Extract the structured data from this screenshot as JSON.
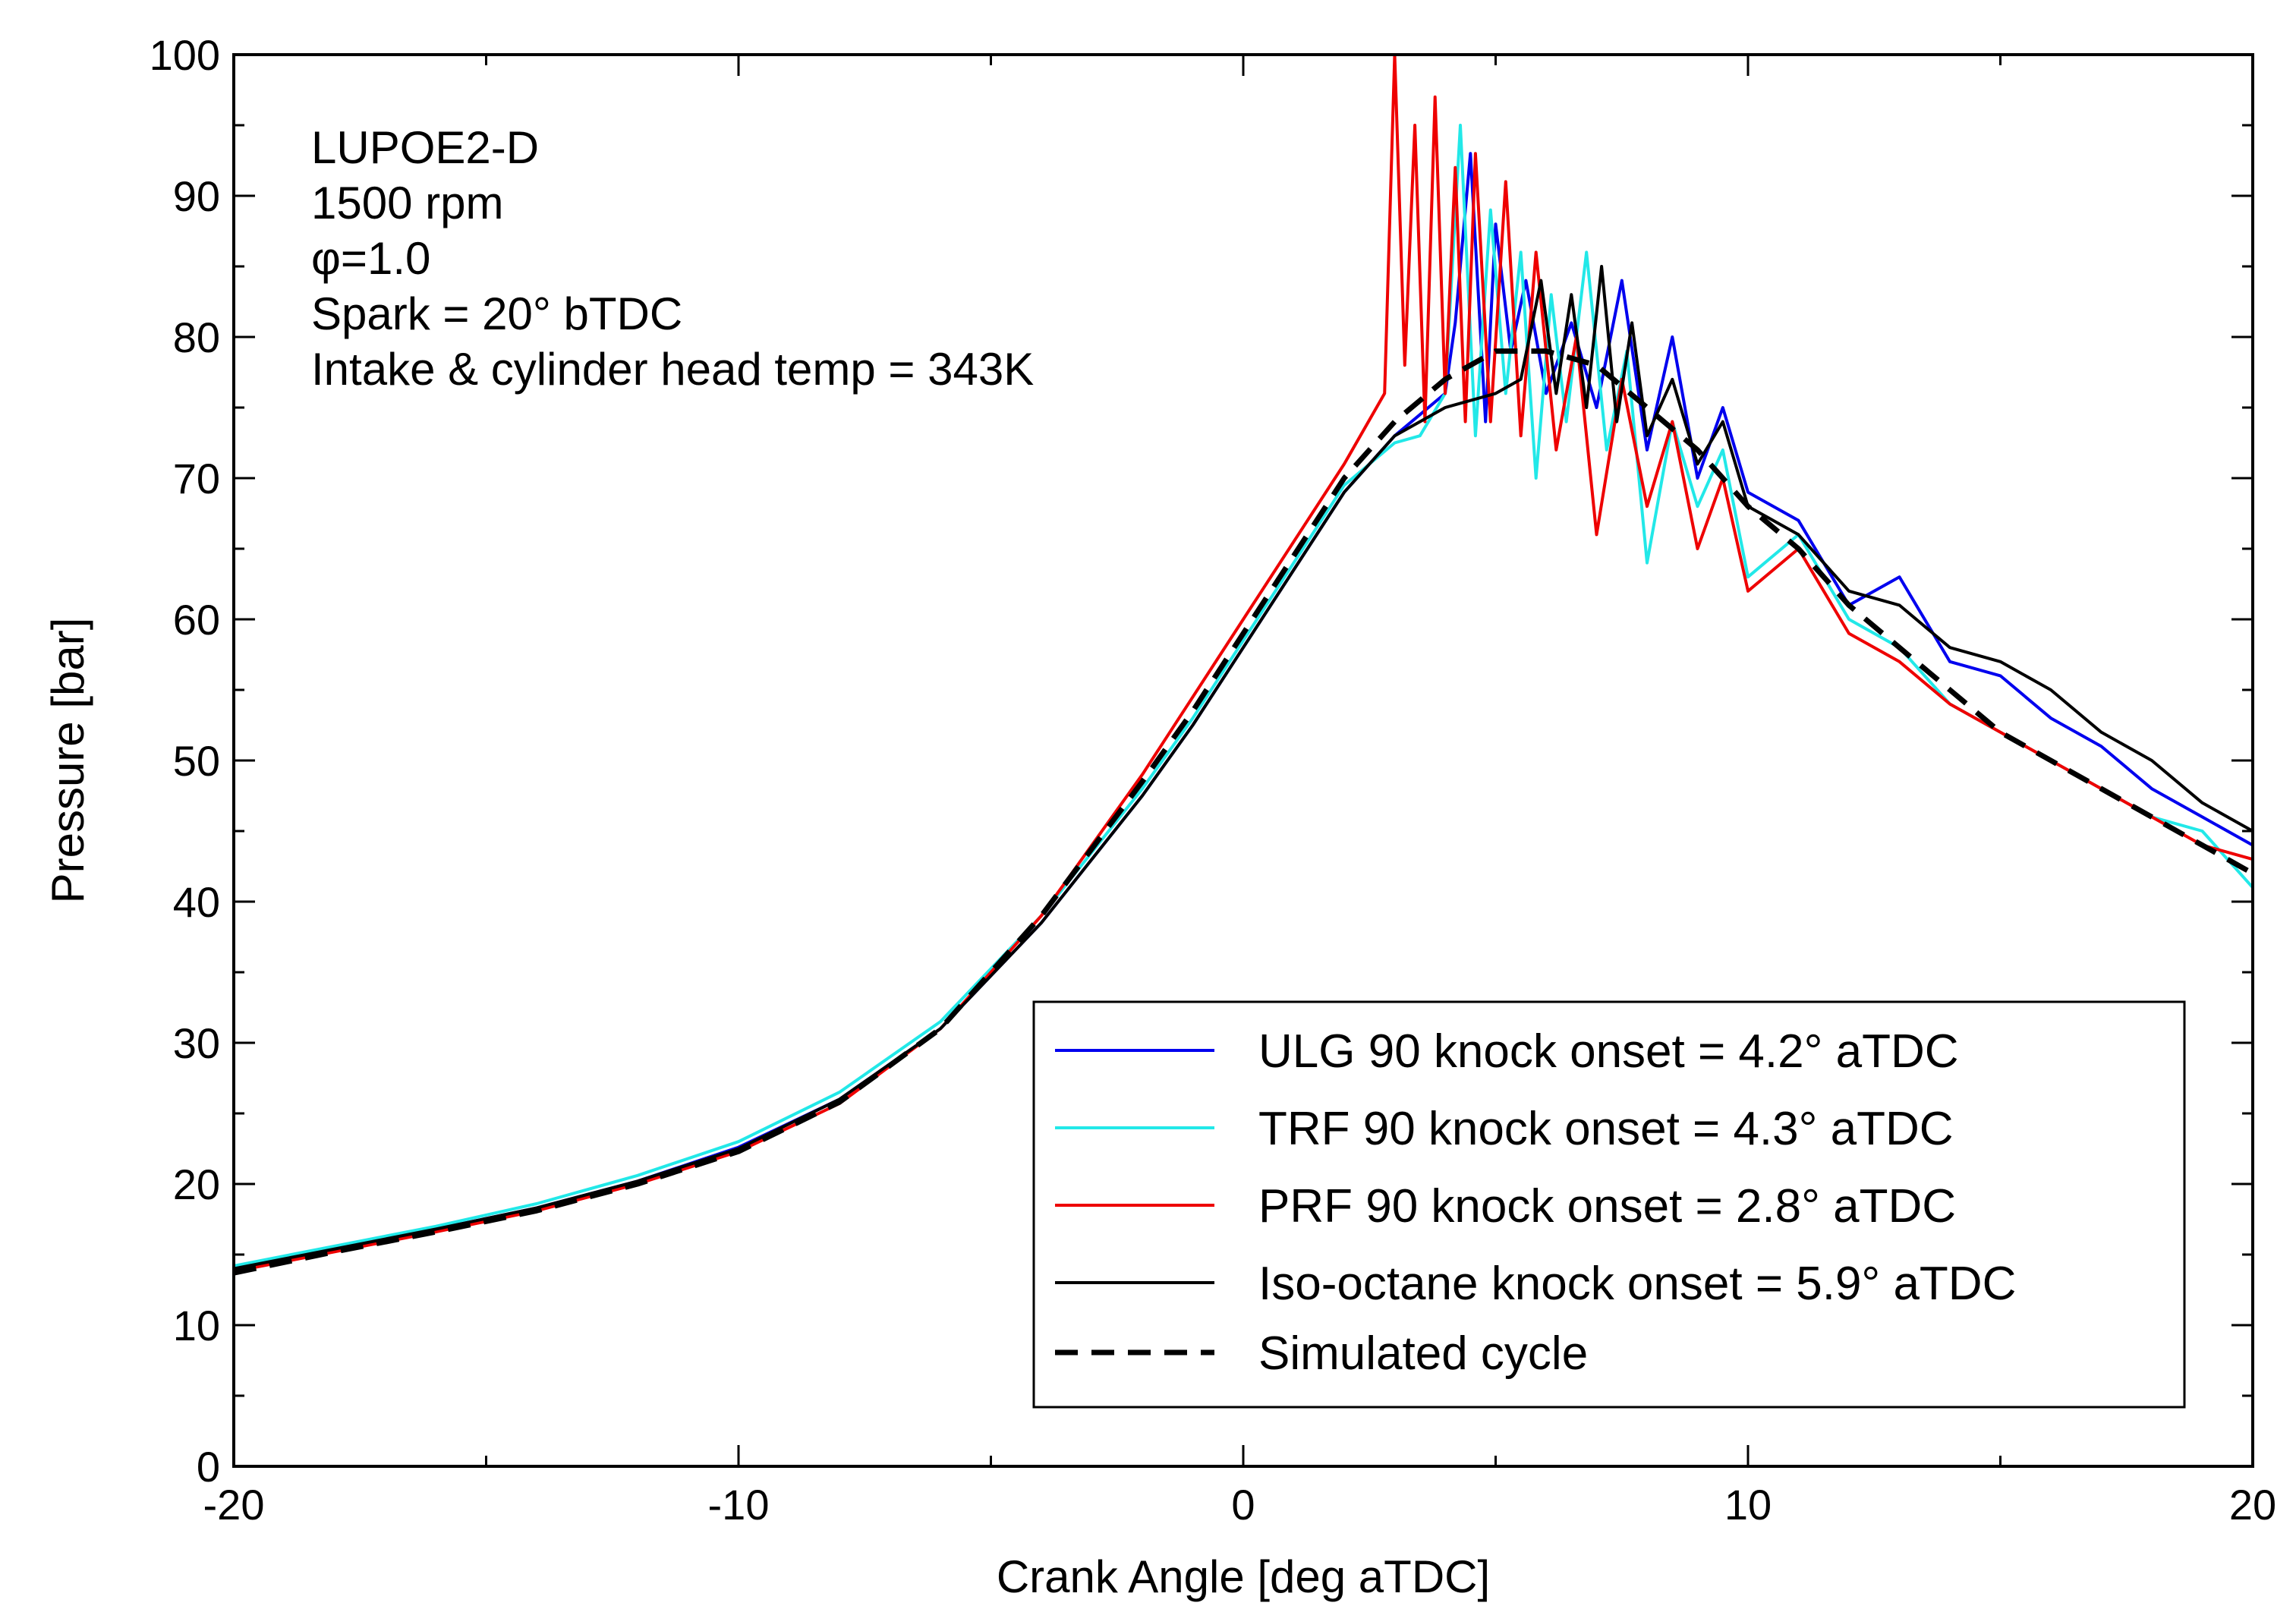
{
  "chart_data": {
    "type": "line",
    "xlabel": "Crank Angle [deg aTDC]",
    "ylabel": "Pressure [bar]",
    "xlim": [
      -20,
      20
    ],
    "ylim": [
      0,
      100
    ],
    "xticks": [
      -20,
      -10,
      0,
      10,
      20
    ],
    "yticks": [
      0,
      10,
      20,
      30,
      40,
      50,
      60,
      70,
      80,
      90,
      100
    ],
    "grid": false,
    "annotations": [
      "LUPOE2-D",
      "1500 rpm",
      "φ=1.0",
      "Spark = 20° bTDC",
      "Intake & cylinder head temp = 343K"
    ],
    "legend_position": "bottom-right",
    "series": [
      {
        "name": "ULG 90 knock onset = 4.2° aTDC",
        "color": "#0000ee",
        "dashed": false,
        "x": [
          -20,
          -18,
          -16,
          -14,
          -12,
          -10,
          -8,
          -6,
          -4,
          -2,
          -1,
          0,
          1,
          2,
          3,
          3.5,
          4,
          4.2,
          4.5,
          4.8,
          5.0,
          5.3,
          5.6,
          6.0,
          6.5,
          7.0,
          7.5,
          8,
          8.5,
          9,
          9.5,
          10,
          11,
          12,
          13,
          14,
          15,
          16,
          17,
          18,
          19,
          20
        ],
        "y": [
          14,
          15.4,
          16.8,
          18.3,
          20.2,
          22.6,
          26,
          31,
          38.5,
          47.5,
          52.5,
          58,
          63.5,
          69,
          73,
          74.5,
          76,
          81,
          93,
          74,
          88,
          79,
          84,
          76,
          81,
          75,
          84,
          72,
          80,
          70,
          75,
          69,
          67,
          61,
          63,
          57,
          56,
          53,
          51,
          48,
          46,
          44
        ]
      },
      {
        "name": "TRF 90 knock onset = 4.3° aTDC",
        "color": "#22e8e8",
        "dashed": false,
        "x": [
          -20,
          -18,
          -16,
          -14,
          -12,
          -10,
          -8,
          -6,
          -4,
          -2,
          -1,
          0,
          1,
          2,
          3,
          3.5,
          4,
          4.3,
          4.6,
          4.9,
          5.2,
          5.5,
          5.8,
          6.1,
          6.4,
          6.8,
          7.2,
          7.6,
          8,
          8.5,
          9,
          9.5,
          10,
          11,
          12,
          13,
          14,
          15,
          16,
          17,
          18,
          19,
          20
        ],
        "y": [
          14.2,
          15.6,
          17,
          18.6,
          20.6,
          23,
          26.5,
          31.5,
          39,
          48,
          53,
          58.5,
          64,
          69.5,
          72.5,
          73,
          76,
          95,
          73,
          89,
          76,
          86,
          70,
          83,
          74,
          86,
          72,
          79,
          64,
          74,
          68,
          72,
          63,
          66,
          60,
          58,
          54,
          52,
          50,
          48,
          46,
          45,
          41
        ]
      },
      {
        "name": "PRF 90 knock onset = 2.8° aTDC",
        "color": "#ee0000",
        "dashed": false,
        "x": [
          -20,
          -18,
          -16,
          -14,
          -12,
          -10,
          -8,
          -6,
          -4,
          -2,
          -1,
          0,
          1,
          2,
          2.8,
          3.0,
          3.2,
          3.4,
          3.6,
          3.8,
          4.0,
          4.2,
          4.4,
          4.6,
          4.9,
          5.2,
          5.5,
          5.8,
          6.2,
          6.6,
          7.0,
          7.5,
          8,
          8.5,
          9,
          9.5,
          10,
          11,
          12,
          13,
          14,
          15,
          16,
          17,
          18,
          19,
          20
        ],
        "y": [
          13.8,
          15.2,
          16.6,
          18.1,
          20,
          22.3,
          25.7,
          31,
          39,
          49,
          54.5,
          60,
          65.5,
          71,
          76,
          100,
          78,
          95,
          74,
          97,
          76,
          92,
          74,
          93,
          74,
          91,
          73,
          86,
          72,
          80,
          66,
          77,
          68,
          74,
          65,
          70,
          62,
          65,
          59,
          57,
          54,
          52,
          50,
          48,
          46,
          44,
          43
        ]
      },
      {
        "name": "Iso-octane knock onset = 5.9° aTDC",
        "color": "#000000",
        "dashed": false,
        "x": [
          -20,
          -18,
          -16,
          -14,
          -12,
          -10,
          -8,
          -6,
          -4,
          -2,
          -1,
          0,
          1,
          2,
          3,
          4,
          5,
          5.5,
          5.9,
          6.2,
          6.5,
          6.8,
          7.1,
          7.4,
          7.7,
          8,
          8.5,
          9,
          9.5,
          10,
          11,
          12,
          13,
          14,
          15,
          16,
          17,
          18,
          19,
          20
        ],
        "y": [
          14,
          15.4,
          16.8,
          18.3,
          20.2,
          22.5,
          26,
          31,
          38.5,
          47.5,
          52.5,
          58,
          63.5,
          69,
          73,
          75,
          76,
          77,
          84,
          76,
          83,
          75,
          85,
          74,
          81,
          73,
          77,
          71,
          74,
          68,
          66,
          62,
          61,
          58,
          57,
          55,
          52,
          50,
          47,
          45
        ]
      },
      {
        "name": "Simulated cycle",
        "color": "#000000",
        "dashed": true,
        "x": [
          -20,
          -18,
          -16,
          -14,
          -12,
          -10,
          -8,
          -6,
          -4,
          -2,
          -1,
          0,
          1,
          2,
          3,
          4,
          5,
          6,
          7,
          8,
          9,
          10,
          11,
          12,
          13,
          14,
          15,
          16,
          17,
          18,
          19,
          20
        ],
        "y": [
          13.7,
          15.2,
          16.6,
          18.1,
          20,
          22.3,
          25.8,
          31,
          39,
          48.5,
          53.5,
          59,
          64.5,
          70,
          74,
          77,
          79,
          79,
          78,
          75,
          72,
          68,
          65,
          61,
          58,
          55,
          52,
          50,
          48,
          46,
          44,
          42
        ]
      }
    ]
  }
}
